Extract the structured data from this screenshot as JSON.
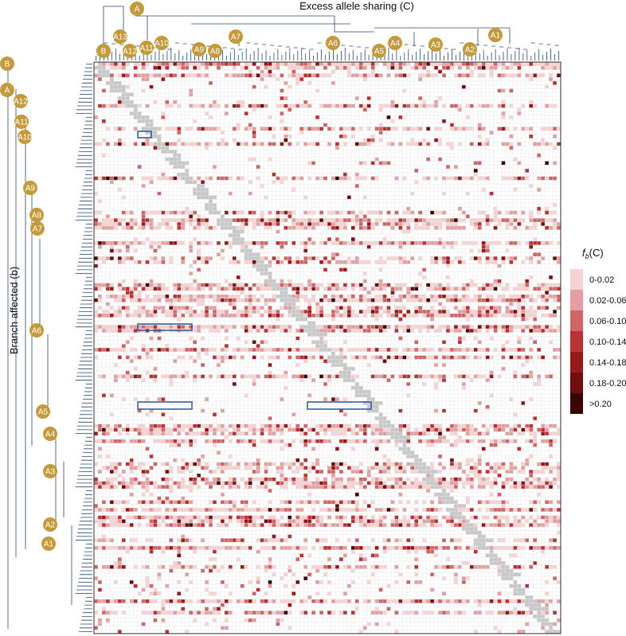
{
  "chart_data": {
    "type": "heatmap",
    "title": "Excess allele sharing (C)",
    "ylabel": "Branch affected (b)",
    "legend": {
      "title_prefix": "f",
      "title_subscript": "b",
      "title_suffix": "(C)",
      "placement": "right",
      "bins": [
        {
          "label": "0-0.02",
          "color": "#f6d2d2"
        },
        {
          "label": "0.02-0.06",
          "color": "#e2a0a0"
        },
        {
          "label": "0.06-0.10",
          "color": "#d06565"
        },
        {
          "label": "0.10-0.14",
          "color": "#b83333"
        },
        {
          "label": "0.14-0.18",
          "color": "#951b1b"
        },
        {
          "label": "0.18-0.20",
          "color": "#6e0e0e"
        },
        {
          "label": ">0.20",
          "color": "#3c0505"
        }
      ]
    },
    "na_color": "#c8c8c8",
    "grid": true,
    "top_tree_nodes": [
      "A",
      "B",
      "A13",
      "A12",
      "A11",
      "A10",
      "A9",
      "A8",
      "A7",
      "A6",
      "A5",
      "A4",
      "A3",
      "A2",
      "A1"
    ],
    "left_tree_nodes": [
      "B",
      "A",
      "A12",
      "A11",
      "A10",
      "A9",
      "A8",
      "A7",
      "A6",
      "A5",
      "A4",
      "A3",
      "A2",
      "A1"
    ],
    "highlight_boxes": 4
  },
  "colors": {
    "tree_line": "#2c4e73",
    "node_fill": "#c49a3c",
    "highlight_border": "#2b5b9c",
    "grid_line": "#e6e6e6"
  }
}
